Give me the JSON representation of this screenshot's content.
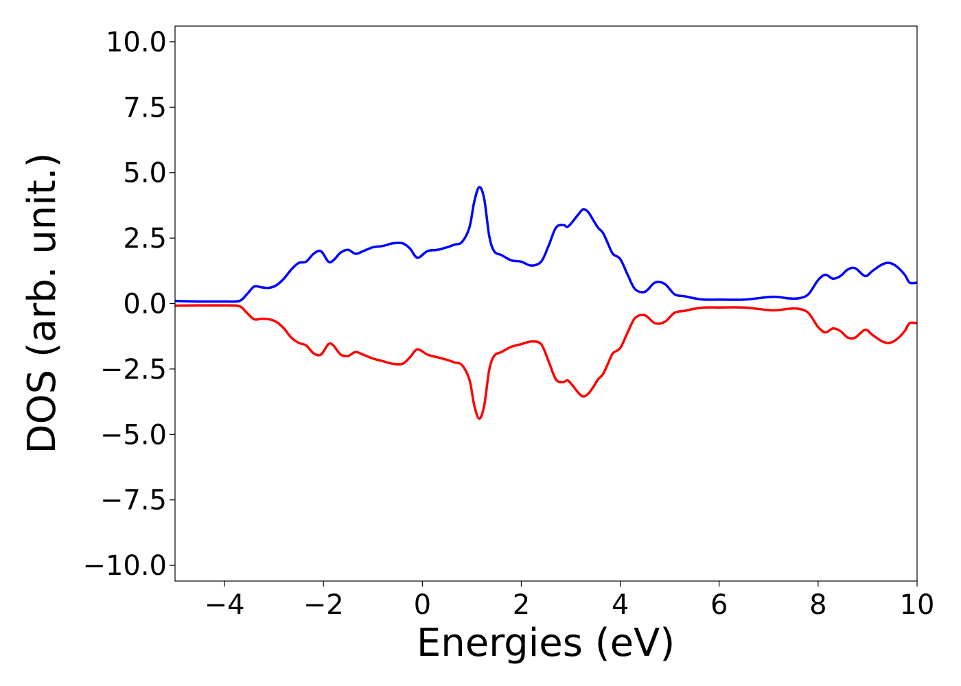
{
  "chart_data": {
    "type": "line",
    "title": "",
    "xlabel": "Energies (eV)",
    "ylabel": "DOS (arb. unit.)",
    "xlim": [
      -5,
      10
    ],
    "ylim": [
      -10.6,
      10.6
    ],
    "grid": false,
    "legend": "none",
    "x_ticks": [
      -4,
      -2,
      0,
      2,
      4,
      6,
      8,
      10
    ],
    "x_tick_labels": [
      "−4",
      "−2",
      "0",
      "2",
      "4",
      "6",
      "8",
      "10"
    ],
    "y_ticks": [
      10.0,
      7.5,
      5.0,
      2.5,
      0.0,
      -2.5,
      -5.0,
      -7.5,
      -10.0
    ],
    "y_tick_labels": [
      "10.0",
      "7.5",
      "5.0",
      "2.5",
      "0.0",
      "−2.5",
      "−5.0",
      "−7.5",
      "−10.0"
    ],
    "series": [
      {
        "color": "#0000ff",
        "x": [
          -5.0,
          -4.5,
          -4.0,
          -3.7,
          -3.55,
          -3.4,
          -3.25,
          -3.1,
          -2.95,
          -2.8,
          -2.65,
          -2.5,
          -2.35,
          -2.2,
          -2.05,
          -1.9,
          -1.8,
          -1.65,
          -1.5,
          -1.35,
          -1.2,
          -1.0,
          -0.8,
          -0.6,
          -0.4,
          -0.25,
          -0.1,
          0.1,
          0.3,
          0.5,
          0.65,
          0.8,
          0.95,
          1.05,
          1.15,
          1.25,
          1.35,
          1.45,
          1.6,
          1.8,
          2.0,
          2.2,
          2.4,
          2.55,
          2.7,
          2.85,
          2.95,
          3.15,
          3.25,
          3.35,
          3.45,
          3.55,
          3.65,
          3.75,
          3.85,
          4.0,
          4.15,
          4.3,
          4.5,
          4.7,
          4.9,
          5.1,
          5.3,
          5.5,
          5.7,
          6.0,
          6.5,
          7.0,
          7.2,
          7.4,
          7.6,
          7.8,
          8.0,
          8.15,
          8.3,
          8.45,
          8.6,
          8.75,
          8.95,
          9.1,
          9.3,
          9.45,
          9.6,
          9.75,
          9.85,
          10.0
        ],
        "y": [
          0.1,
          0.08,
          0.08,
          0.1,
          0.35,
          0.65,
          0.62,
          0.6,
          0.7,
          0.95,
          1.3,
          1.55,
          1.6,
          1.9,
          2.0,
          1.6,
          1.65,
          1.95,
          2.05,
          1.9,
          2.0,
          2.15,
          2.2,
          2.3,
          2.3,
          2.1,
          1.75,
          2.0,
          2.05,
          2.15,
          2.25,
          2.35,
          2.9,
          3.9,
          4.45,
          4.0,
          2.6,
          2.0,
          1.85,
          1.65,
          1.6,
          1.45,
          1.6,
          2.2,
          2.9,
          3.0,
          2.95,
          3.4,
          3.6,
          3.5,
          3.2,
          2.9,
          2.7,
          2.3,
          1.9,
          1.7,
          1.1,
          0.55,
          0.45,
          0.8,
          0.75,
          0.35,
          0.28,
          0.2,
          0.15,
          0.15,
          0.15,
          0.25,
          0.25,
          0.2,
          0.2,
          0.35,
          0.9,
          1.1,
          0.95,
          1.05,
          1.3,
          1.35,
          1.05,
          1.25,
          1.5,
          1.55,
          1.4,
          1.1,
          0.8,
          0.8
        ]
      },
      {
        "color": "#ff0000",
        "x": [
          -5.0,
          -4.5,
          -4.0,
          -3.7,
          -3.55,
          -3.4,
          -3.25,
          -3.1,
          -2.95,
          -2.8,
          -2.65,
          -2.5,
          -2.35,
          -2.2,
          -2.05,
          -1.9,
          -1.8,
          -1.65,
          -1.5,
          -1.35,
          -1.2,
          -1.0,
          -0.8,
          -0.6,
          -0.4,
          -0.25,
          -0.1,
          0.1,
          0.3,
          0.5,
          0.65,
          0.8,
          0.95,
          1.05,
          1.15,
          1.25,
          1.35,
          1.45,
          1.6,
          1.8,
          2.0,
          2.2,
          2.4,
          2.55,
          2.7,
          2.85,
          2.95,
          3.15,
          3.25,
          3.35,
          3.45,
          3.55,
          3.65,
          3.75,
          3.85,
          4.0,
          4.15,
          4.3,
          4.5,
          4.7,
          4.9,
          5.1,
          5.3,
          5.5,
          5.7,
          6.0,
          6.5,
          7.0,
          7.2,
          7.4,
          7.6,
          7.8,
          8.0,
          8.15,
          8.3,
          8.45,
          8.6,
          8.75,
          8.95,
          9.1,
          9.3,
          9.45,
          9.6,
          9.75,
          9.85,
          10.0
        ],
        "y": [
          -0.08,
          -0.07,
          -0.07,
          -0.1,
          -0.35,
          -0.6,
          -0.58,
          -0.6,
          -0.7,
          -0.95,
          -1.3,
          -1.5,
          -1.6,
          -1.9,
          -1.95,
          -1.55,
          -1.6,
          -1.95,
          -2.0,
          -1.85,
          -1.95,
          -2.1,
          -2.2,
          -2.3,
          -2.3,
          -2.05,
          -1.75,
          -1.95,
          -2.05,
          -2.15,
          -2.25,
          -2.35,
          -2.9,
          -3.9,
          -4.4,
          -3.9,
          -2.55,
          -2.0,
          -1.85,
          -1.65,
          -1.55,
          -1.45,
          -1.55,
          -2.2,
          -2.9,
          -3.0,
          -2.95,
          -3.4,
          -3.55,
          -3.45,
          -3.2,
          -2.9,
          -2.7,
          -2.3,
          -1.9,
          -1.7,
          -1.1,
          -0.55,
          -0.45,
          -0.75,
          -0.7,
          -0.35,
          -0.28,
          -0.2,
          -0.15,
          -0.15,
          -0.15,
          -0.25,
          -0.25,
          -0.2,
          -0.2,
          -0.35,
          -0.9,
          -1.1,
          -0.95,
          -1.05,
          -1.3,
          -1.3,
          -1.0,
          -1.2,
          -1.45,
          -1.5,
          -1.35,
          -1.05,
          -0.75,
          -0.75
        ]
      }
    ]
  }
}
